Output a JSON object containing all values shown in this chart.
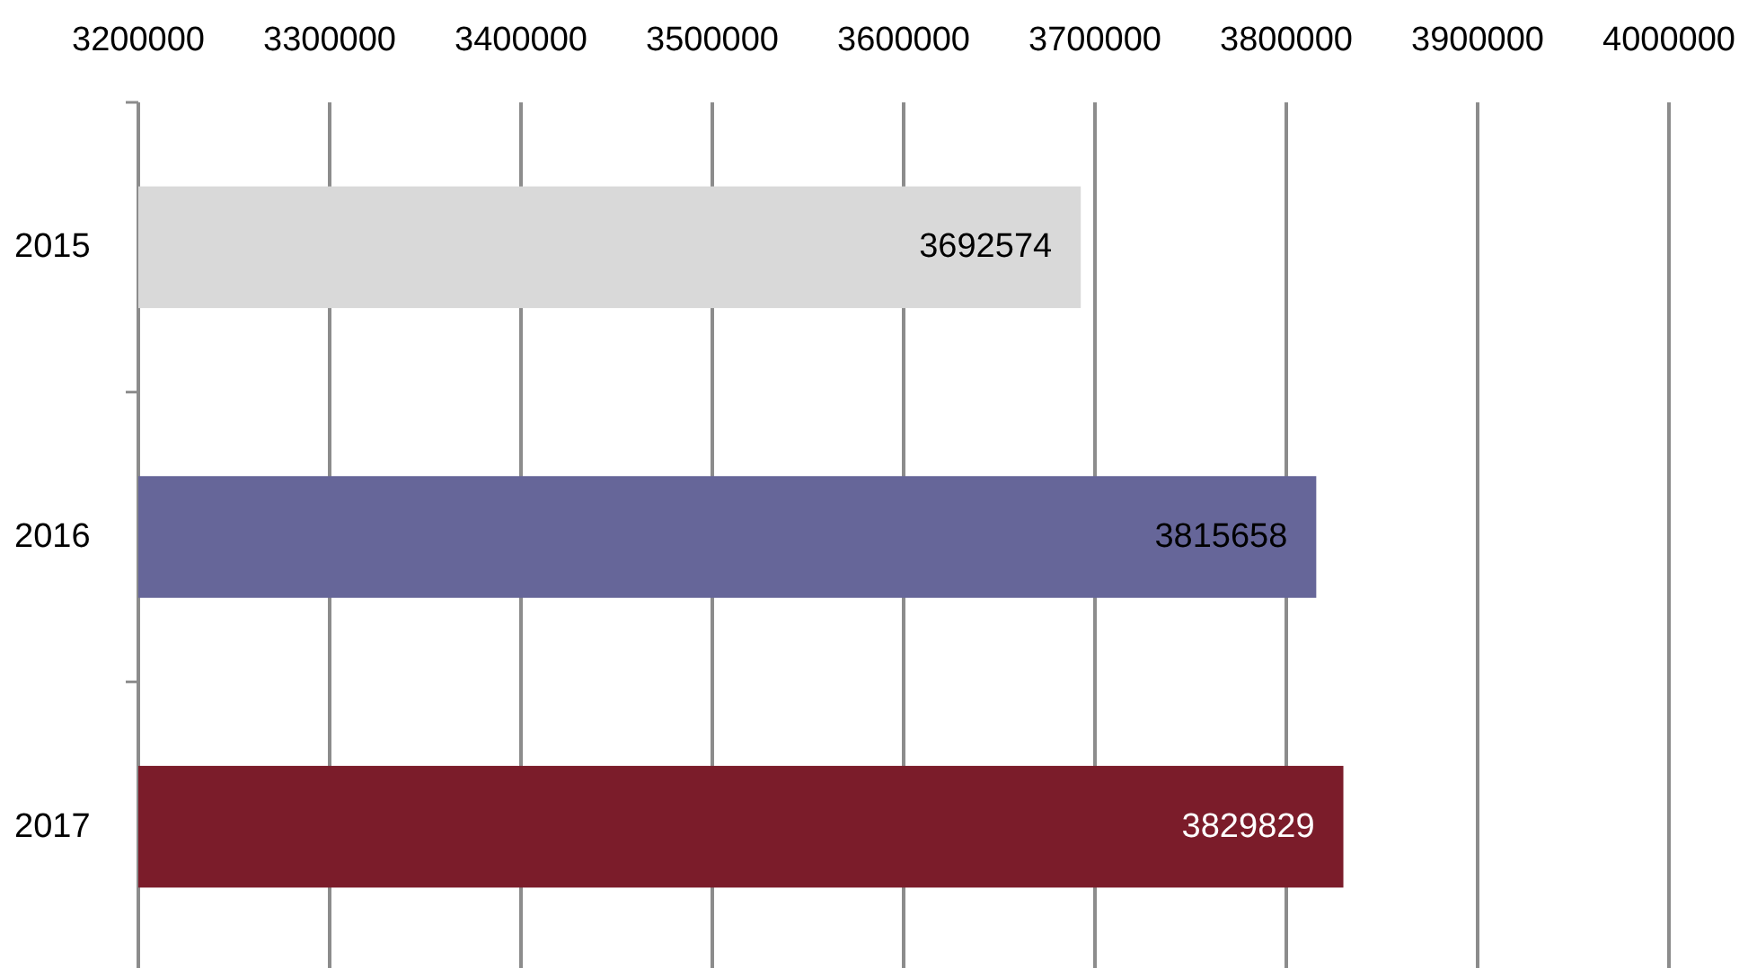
{
  "chart_data": {
    "type": "bar",
    "orientation": "horizontal",
    "categories": [
      "2015",
      "2016",
      "2017"
    ],
    "values": [
      3692574,
      3815658,
      3829829
    ],
    "colors": [
      "#d9d9d9",
      "#666699",
      "#7b1c2a"
    ],
    "xlim": [
      3200000,
      4000000
    ],
    "xticks": [
      3200000,
      3300000,
      3400000,
      3500000,
      3600000,
      3700000,
      3800000,
      3900000,
      4000000
    ],
    "grid": "x",
    "data_labels": true
  }
}
